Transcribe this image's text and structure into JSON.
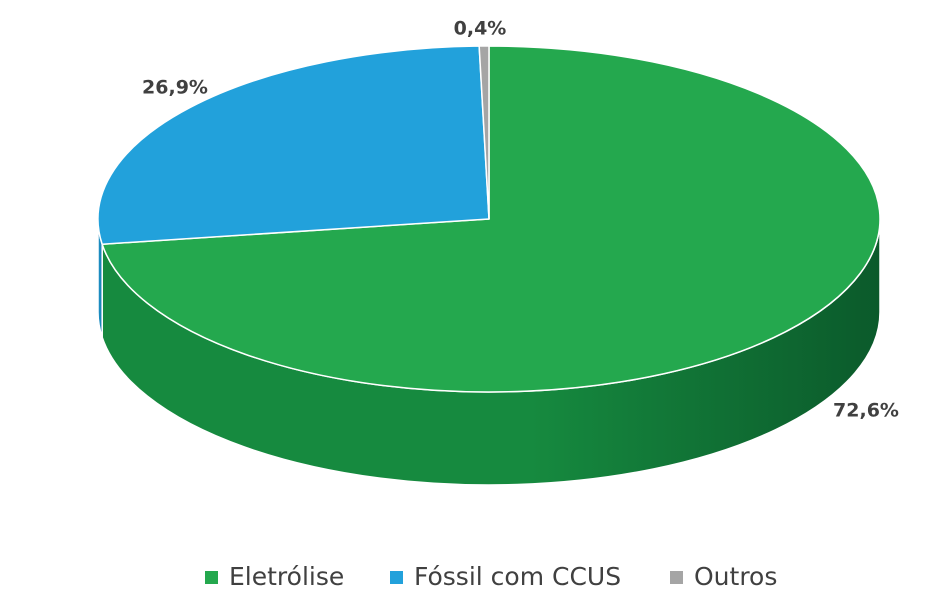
{
  "chart_data": {
    "type": "pie",
    "title": "",
    "slices": [
      {
        "name": "Eletrólise",
        "value": 72.6,
        "label": "72,6%",
        "color": "#24A84E",
        "side_dark": "#0B5A2B",
        "side_light": "#168A3F"
      },
      {
        "name": "Fóssil com CCUS",
        "value": 26.9,
        "label": "26,9%",
        "color": "#22A1DB",
        "side_dark": "#136E99",
        "side_light": "#1B8CC0"
      },
      {
        "name": "Outros",
        "value": 0.4,
        "label": "0,4%",
        "color": "#A5A5A5",
        "side_dark": "#707070",
        "side_light": "#8C8C8C"
      }
    ],
    "legend_position": "bottom"
  }
}
